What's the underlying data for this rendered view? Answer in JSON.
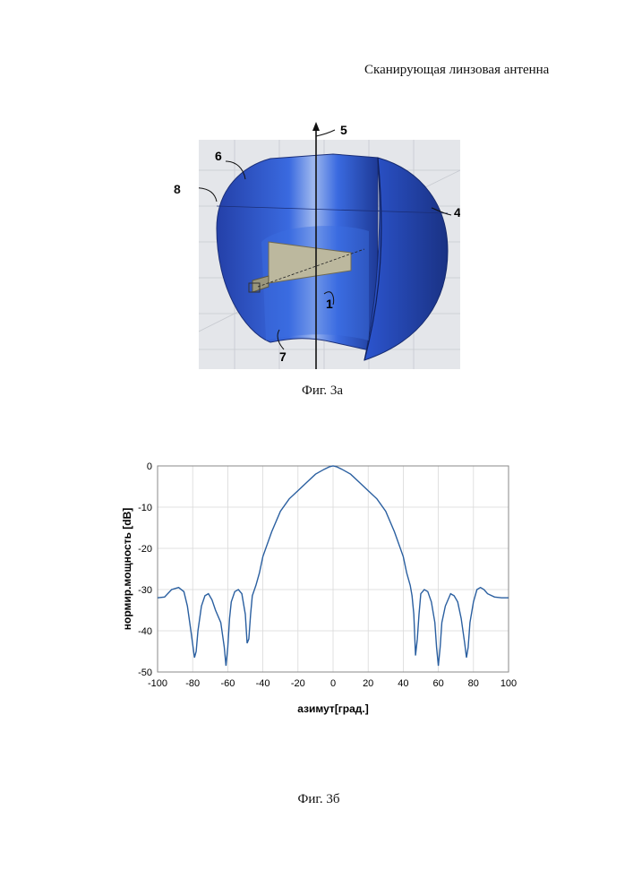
{
  "page_title": "Сканирующая линзовая антенна",
  "figure_a": {
    "caption": "Фиг. 3а",
    "callouts": [
      "5",
      "6",
      "8",
      "4",
      "1",
      "7"
    ]
  },
  "figure_b": {
    "caption": "Фиг. 3б"
  },
  "colors": {
    "lens_blue": "#2f58d6",
    "lens_dark": "#1f3e9e",
    "horn": "#bcb89e",
    "curve": "#2a5fa0",
    "grid": "#d9d9d9"
  },
  "chart_data": {
    "type": "line",
    "xlabel": "азимут[град.]",
    "ylabel": "нормир.мощность [dB]",
    "xlim": [
      -100,
      100
    ],
    "ylim": [
      -50,
      0
    ],
    "xticks": [
      "-100",
      "-80",
      "-60",
      "-40",
      "-20",
      "0",
      "20",
      "40",
      "60",
      "80",
      "100"
    ],
    "yticks": [
      "0",
      "-10",
      "-20",
      "-30",
      "-40",
      "-50"
    ],
    "grid": true,
    "series": [
      {
        "x": [
          -100,
          -96,
          -92,
          -88,
          -85,
          -83,
          -81,
          -79,
          -78,
          -77,
          -75,
          -73,
          -71,
          -69,
          -67,
          -64,
          -62,
          -61,
          -60,
          -59,
          -58,
          -56,
          -54,
          -52,
          -50,
          -49,
          -48,
          -47,
          -46,
          -44,
          -42,
          -40,
          -35,
          -30,
          -25,
          -20,
          -15,
          -10,
          -5,
          -2,
          0,
          2,
          5,
          10,
          15,
          20,
          25,
          30,
          35,
          40,
          42,
          44,
          45,
          46,
          47,
          48,
          49,
          50,
          52,
          54,
          56,
          58,
          59,
          60,
          61,
          62,
          64,
          67,
          69,
          71,
          73,
          75,
          76,
          77,
          78,
          80,
          82,
          84,
          86,
          88,
          92,
          96,
          100
        ],
        "y": [
          -32,
          -31.8,
          -30,
          -29.5,
          -30.5,
          -34,
          -40,
          -46.5,
          -45,
          -40,
          -34,
          -31.5,
          -31,
          -32.5,
          -35,
          -38,
          -44,
          -48.5,
          -44,
          -37,
          -33,
          -30.5,
          -30,
          -31,
          -36,
          -43,
          -42,
          -36,
          -31.5,
          -29,
          -26,
          -22,
          -16,
          -11,
          -8,
          -6,
          -4,
          -2,
          -0.8,
          -0.2,
          0,
          -0.2,
          -0.8,
          -2,
          -4,
          -6,
          -8,
          -11,
          -16,
          -22,
          -26,
          -29,
          -31.5,
          -36,
          -46,
          -42,
          -36,
          -31,
          -30,
          -30.5,
          -33,
          -38,
          -44,
          -48.5,
          -44,
          -38,
          -34,
          -31,
          -31.5,
          -33,
          -37,
          -43,
          -46.5,
          -44,
          -38,
          -33,
          -30,
          -29.5,
          -30,
          -31,
          -31.8,
          -32,
          -32
        ]
      }
    ]
  }
}
